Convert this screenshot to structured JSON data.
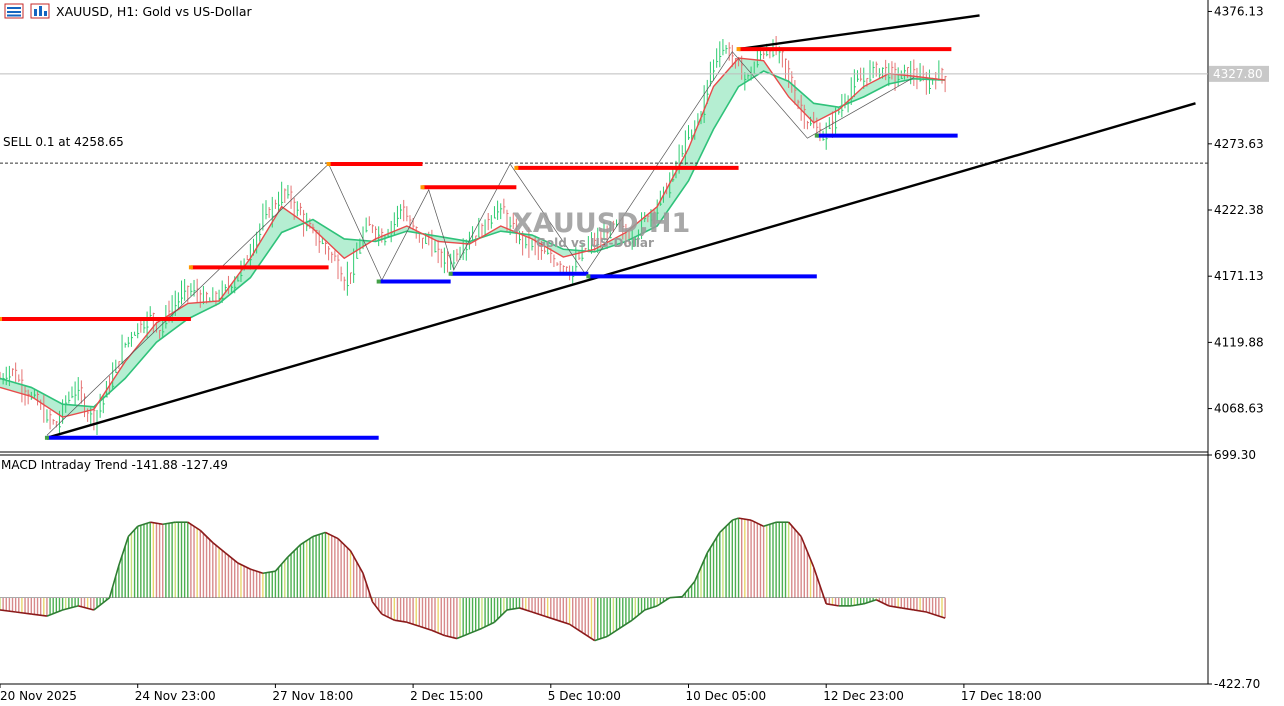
{
  "header": {
    "symbol_line": "XAUUSD, H1:  Gold vs US-Dollar",
    "icons": [
      "market-watch-icon",
      "chart-bars-icon"
    ]
  },
  "watermark": {
    "title": "XAUUSD,H1",
    "subtitle": "Gold vs US-Dollar"
  },
  "trade_line_label": "SELL 0.1 at 4258.65",
  "macd_label": "MACD Intraday Trend  -141.88 -127.49",
  "price_axis": {
    "ticks": [
      "4376.13",
      "4273.63",
      "4222.38",
      "4171.13",
      "4119.88",
      "4068.63"
    ],
    "current_price": "4327.80"
  },
  "macd_axis": {
    "ticks": [
      "699.30",
      "-422.70"
    ]
  },
  "time_axis": {
    "ticks": [
      "20 Nov 2025",
      "24 Nov 23:00",
      "27 Nov 18:00",
      "2 Dec 15:00",
      "5 Dec 10:00",
      "10 Dec 05:00",
      "12 Dec 23:00",
      "17 Dec 18:00"
    ]
  },
  "colors": {
    "resistance": "#ff0000",
    "support": "#0000ff",
    "trendline": "#000000",
    "bull_bar": "#2ecc71",
    "bear_bar": "#e57373",
    "ema_fast": "#e84b4b",
    "ema_slow": "#2fc27a",
    "cloud": "#9ce8c3",
    "macd_line": "#8b1a1a",
    "macd_line_up": "#2e7d32"
  },
  "chart_data": [
    {
      "type": "line",
      "title": "XAUUSD, H1: Gold vs US-Dollar",
      "x_unit": "H1 bar index (0 = 20 Nov 2025)",
      "ylim": [
        4035,
        4385
      ],
      "close_path": [
        [
          0,
          4092
        ],
        [
          3,
          4100
        ],
        [
          6,
          4090
        ],
        [
          9,
          4080
        ],
        [
          12,
          4072
        ],
        [
          15,
          4060
        ],
        [
          18,
          4055
        ],
        [
          21,
          4075
        ],
        [
          24,
          4085
        ],
        [
          27,
          4070
        ],
        [
          30,
          4062
        ],
        [
          33,
          4078
        ],
        [
          36,
          4095
        ],
        [
          39,
          4115
        ],
        [
          42,
          4128
        ],
        [
          45,
          4135
        ],
        [
          48,
          4140
        ],
        [
          51,
          4130
        ],
        [
          54,
          4145
        ],
        [
          57,
          4155
        ],
        [
          60,
          4160
        ],
        [
          63,
          4158
        ],
        [
          66,
          4150
        ],
        [
          69,
          4155
        ],
        [
          72,
          4160
        ],
        [
          75,
          4170
        ],
        [
          78,
          4180
        ],
        [
          81,
          4200
        ],
        [
          84,
          4215
        ],
        [
          87,
          4225
        ],
        [
          90,
          4235
        ],
        [
          93,
          4230
        ],
        [
          96,
          4218
        ],
        [
          99,
          4205
        ],
        [
          102,
          4198
        ],
        [
          105,
          4190
        ],
        [
          108,
          4178
        ],
        [
          110,
          4168
        ],
        [
          113,
          4180
        ],
        [
          116,
          4205
        ],
        [
          119,
          4210
        ],
        [
          122,
          4202
        ],
        [
          125,
          4212
        ],
        [
          128,
          4225
        ],
        [
          131,
          4210
        ],
        [
          134,
          4198
        ],
        [
          137,
          4200
        ],
        [
          140,
          4185
        ],
        [
          143,
          4182
        ],
        [
          146,
          4190
        ],
        [
          149,
          4200
        ],
        [
          152,
          4205
        ],
        [
          155,
          4210
        ],
        [
          158,
          4225
        ],
        [
          161,
          4218
        ],
        [
          164,
          4205
        ],
        [
          167,
          4198
        ],
        [
          170,
          4195
        ],
        [
          173,
          4188
        ],
        [
          176,
          4185
        ],
        [
          179,
          4182
        ],
        [
          182,
          4175
        ],
        [
          185,
          4185
        ],
        [
          188,
          4195
        ],
        [
          191,
          4198
        ],
        [
          194,
          4205
        ],
        [
          197,
          4210
        ],
        [
          200,
          4200
        ],
        [
          203,
          4205
        ],
        [
          206,
          4215
        ],
        [
          209,
          4225
        ],
        [
          212,
          4235
        ],
        [
          215,
          4250
        ],
        [
          218,
          4270
        ],
        [
          221,
          4282
        ],
        [
          224,
          4300
        ],
        [
          227,
          4330
        ],
        [
          230,
          4350
        ],
        [
          233,
          4345
        ],
        [
          236,
          4330
        ],
        [
          239,
          4325
        ],
        [
          242,
          4340
        ],
        [
          245,
          4348
        ],
        [
          248,
          4345
        ],
        [
          251,
          4330
        ],
        [
          254,
          4310
        ],
        [
          257,
          4295
        ],
        [
          260,
          4285
        ],
        [
          263,
          4280
        ],
        [
          266,
          4290
        ],
        [
          269,
          4305
        ],
        [
          272,
          4318
        ],
        [
          275,
          4322
        ],
        [
          278,
          4330
        ],
        [
          281,
          4332
        ],
        [
          284,
          4328
        ],
        [
          287,
          4325
        ],
        [
          290,
          4330
        ],
        [
          293,
          4325
        ],
        [
          296,
          4320
        ],
        [
          299,
          4328
        ],
        [
          302,
          4325
        ]
      ],
      "fast_ema": [
        [
          0,
          4085
        ],
        [
          10,
          4078
        ],
        [
          20,
          4062
        ],
        [
          30,
          4068
        ],
        [
          40,
          4105
        ],
        [
          50,
          4135
        ],
        [
          60,
          4150
        ],
        [
          70,
          4152
        ],
        [
          80,
          4185
        ],
        [
          90,
          4225
        ],
        [
          100,
          4208
        ],
        [
          110,
          4185
        ],
        [
          120,
          4200
        ],
        [
          130,
          4210
        ],
        [
          140,
          4198
        ],
        [
          150,
          4196
        ],
        [
          160,
          4210
        ],
        [
          170,
          4200
        ],
        [
          180,
          4186
        ],
        [
          190,
          4192
        ],
        [
          200,
          4205
        ],
        [
          210,
          4225
        ],
        [
          220,
          4270
        ],
        [
          228,
          4318
        ],
        [
          236,
          4340
        ],
        [
          244,
          4338
        ],
        [
          252,
          4310
        ],
        [
          260,
          4290
        ],
        [
          268,
          4300
        ],
        [
          276,
          4318
        ],
        [
          284,
          4328
        ],
        [
          292,
          4326
        ],
        [
          302,
          4323
        ]
      ],
      "slow_ema": [
        [
          0,
          4092
        ],
        [
          10,
          4085
        ],
        [
          20,
          4072
        ],
        [
          30,
          4070
        ],
        [
          40,
          4092
        ],
        [
          50,
          4120
        ],
        [
          60,
          4138
        ],
        [
          70,
          4150
        ],
        [
          80,
          4170
        ],
        [
          90,
          4205
        ],
        [
          100,
          4215
        ],
        [
          110,
          4200
        ],
        [
          120,
          4198
        ],
        [
          130,
          4206
        ],
        [
          140,
          4202
        ],
        [
          150,
          4198
        ],
        [
          160,
          4206
        ],
        [
          170,
          4203
        ],
        [
          180,
          4192
        ],
        [
          190,
          4190
        ],
        [
          200,
          4198
        ],
        [
          210,
          4210
        ],
        [
          220,
          4245
        ],
        [
          228,
          4285
        ],
        [
          236,
          4318
        ],
        [
          244,
          4330
        ],
        [
          252,
          4322
        ],
        [
          260,
          4305
        ],
        [
          268,
          4302
        ],
        [
          276,
          4310
        ],
        [
          284,
          4320
        ],
        [
          292,
          4324
        ],
        [
          302,
          4323
        ]
      ],
      "zigzag": [
        [
          15,
          4048
        ],
        [
          105,
          4258
        ],
        [
          122,
          4168
        ],
        [
          137,
          4238
        ],
        [
          145,
          4176
        ],
        [
          163,
          4258
        ],
        [
          187,
          4173
        ],
        [
          234,
          4345
        ],
        [
          258,
          4278
        ],
        [
          292,
          4325
        ]
      ],
      "resistance_levels": [
        {
          "x": [
            0,
            61
          ],
          "y": 4138
        },
        {
          "x": [
            61,
            105
          ],
          "y": 4178
        },
        {
          "x": [
            105,
            135
          ],
          "y": 4258
        },
        {
          "x": [
            135,
            165
          ],
          "y": 4240
        },
        {
          "x": [
            165,
            236
          ],
          "y": 4255
        },
        {
          "x": [
            236,
            304
          ],
          "y": 4347
        }
      ],
      "support_levels": [
        {
          "x": [
            15,
            121
          ],
          "y": 4046
        },
        {
          "x": [
            121,
            144
          ],
          "y": 4167
        },
        {
          "x": [
            144,
            188
          ],
          "y": 4173
        },
        {
          "x": [
            188,
            261
          ],
          "y": 4171
        },
        {
          "x": [
            261,
            306
          ],
          "y": 4280
        }
      ],
      "trendlines": [
        {
          "from": [
            15,
            4046
          ],
          "to": [
            382,
            4305
          ]
        },
        {
          "from": [
            236,
            4347
          ],
          "to": [
            313,
            4373
          ]
        }
      ],
      "trade_level": 4258.65,
      "current_price": 4327.8
    },
    {
      "type": "bar",
      "title": "MACD Intraday Trend",
      "values_shown": [
        -141.88,
        -127.49
      ],
      "ylim": [
        -422.7,
        699.3
      ],
      "signal_path": [
        [
          0,
          -60
        ],
        [
          5,
          -70
        ],
        [
          10,
          -80
        ],
        [
          15,
          -90
        ],
        [
          20,
          -60
        ],
        [
          25,
          -40
        ],
        [
          30,
          -60
        ],
        [
          35,
          0
        ],
        [
          38,
          160
        ],
        [
          41,
          300
        ],
        [
          44,
          350
        ],
        [
          48,
          370
        ],
        [
          52,
          360
        ],
        [
          56,
          370
        ],
        [
          60,
          370
        ],
        [
          64,
          330
        ],
        [
          68,
          270
        ],
        [
          72,
          220
        ],
        [
          76,
          170
        ],
        [
          80,
          140
        ],
        [
          84,
          120
        ],
        [
          88,
          130
        ],
        [
          92,
          200
        ],
        [
          96,
          260
        ],
        [
          100,
          300
        ],
        [
          104,
          320
        ],
        [
          108,
          290
        ],
        [
          112,
          230
        ],
        [
          116,
          120
        ],
        [
          119,
          -20
        ],
        [
          122,
          -80
        ],
        [
          126,
          -110
        ],
        [
          130,
          -120
        ],
        [
          134,
          -140
        ],
        [
          138,
          -160
        ],
        [
          142,
          -185
        ],
        [
          146,
          -200
        ],
        [
          150,
          -175
        ],
        [
          154,
          -150
        ],
        [
          158,
          -120
        ],
        [
          162,
          -60
        ],
        [
          166,
          -50
        ],
        [
          170,
          -70
        ],
        [
          174,
          -90
        ],
        [
          178,
          -110
        ],
        [
          182,
          -130
        ],
        [
          186,
          -170
        ],
        [
          190,
          -210
        ],
        [
          194,
          -190
        ],
        [
          198,
          -150
        ],
        [
          202,
          -110
        ],
        [
          206,
          -60
        ],
        [
          210,
          -40
        ],
        [
          214,
          0
        ],
        [
          218,
          5
        ],
        [
          222,
          80
        ],
        [
          226,
          220
        ],
        [
          230,
          320
        ],
        [
          234,
          380
        ],
        [
          236,
          390
        ],
        [
          240,
          380
        ],
        [
          244,
          350
        ],
        [
          248,
          370
        ],
        [
          252,
          370
        ],
        [
          256,
          300
        ],
        [
          260,
          150
        ],
        [
          264,
          -30
        ],
        [
          268,
          -40
        ],
        [
          272,
          -40
        ],
        [
          276,
          -30
        ],
        [
          280,
          -10
        ],
        [
          284,
          -40
        ],
        [
          288,
          -50
        ],
        [
          292,
          -60
        ],
        [
          296,
          -70
        ],
        [
          302,
          -100
        ]
      ]
    }
  ]
}
